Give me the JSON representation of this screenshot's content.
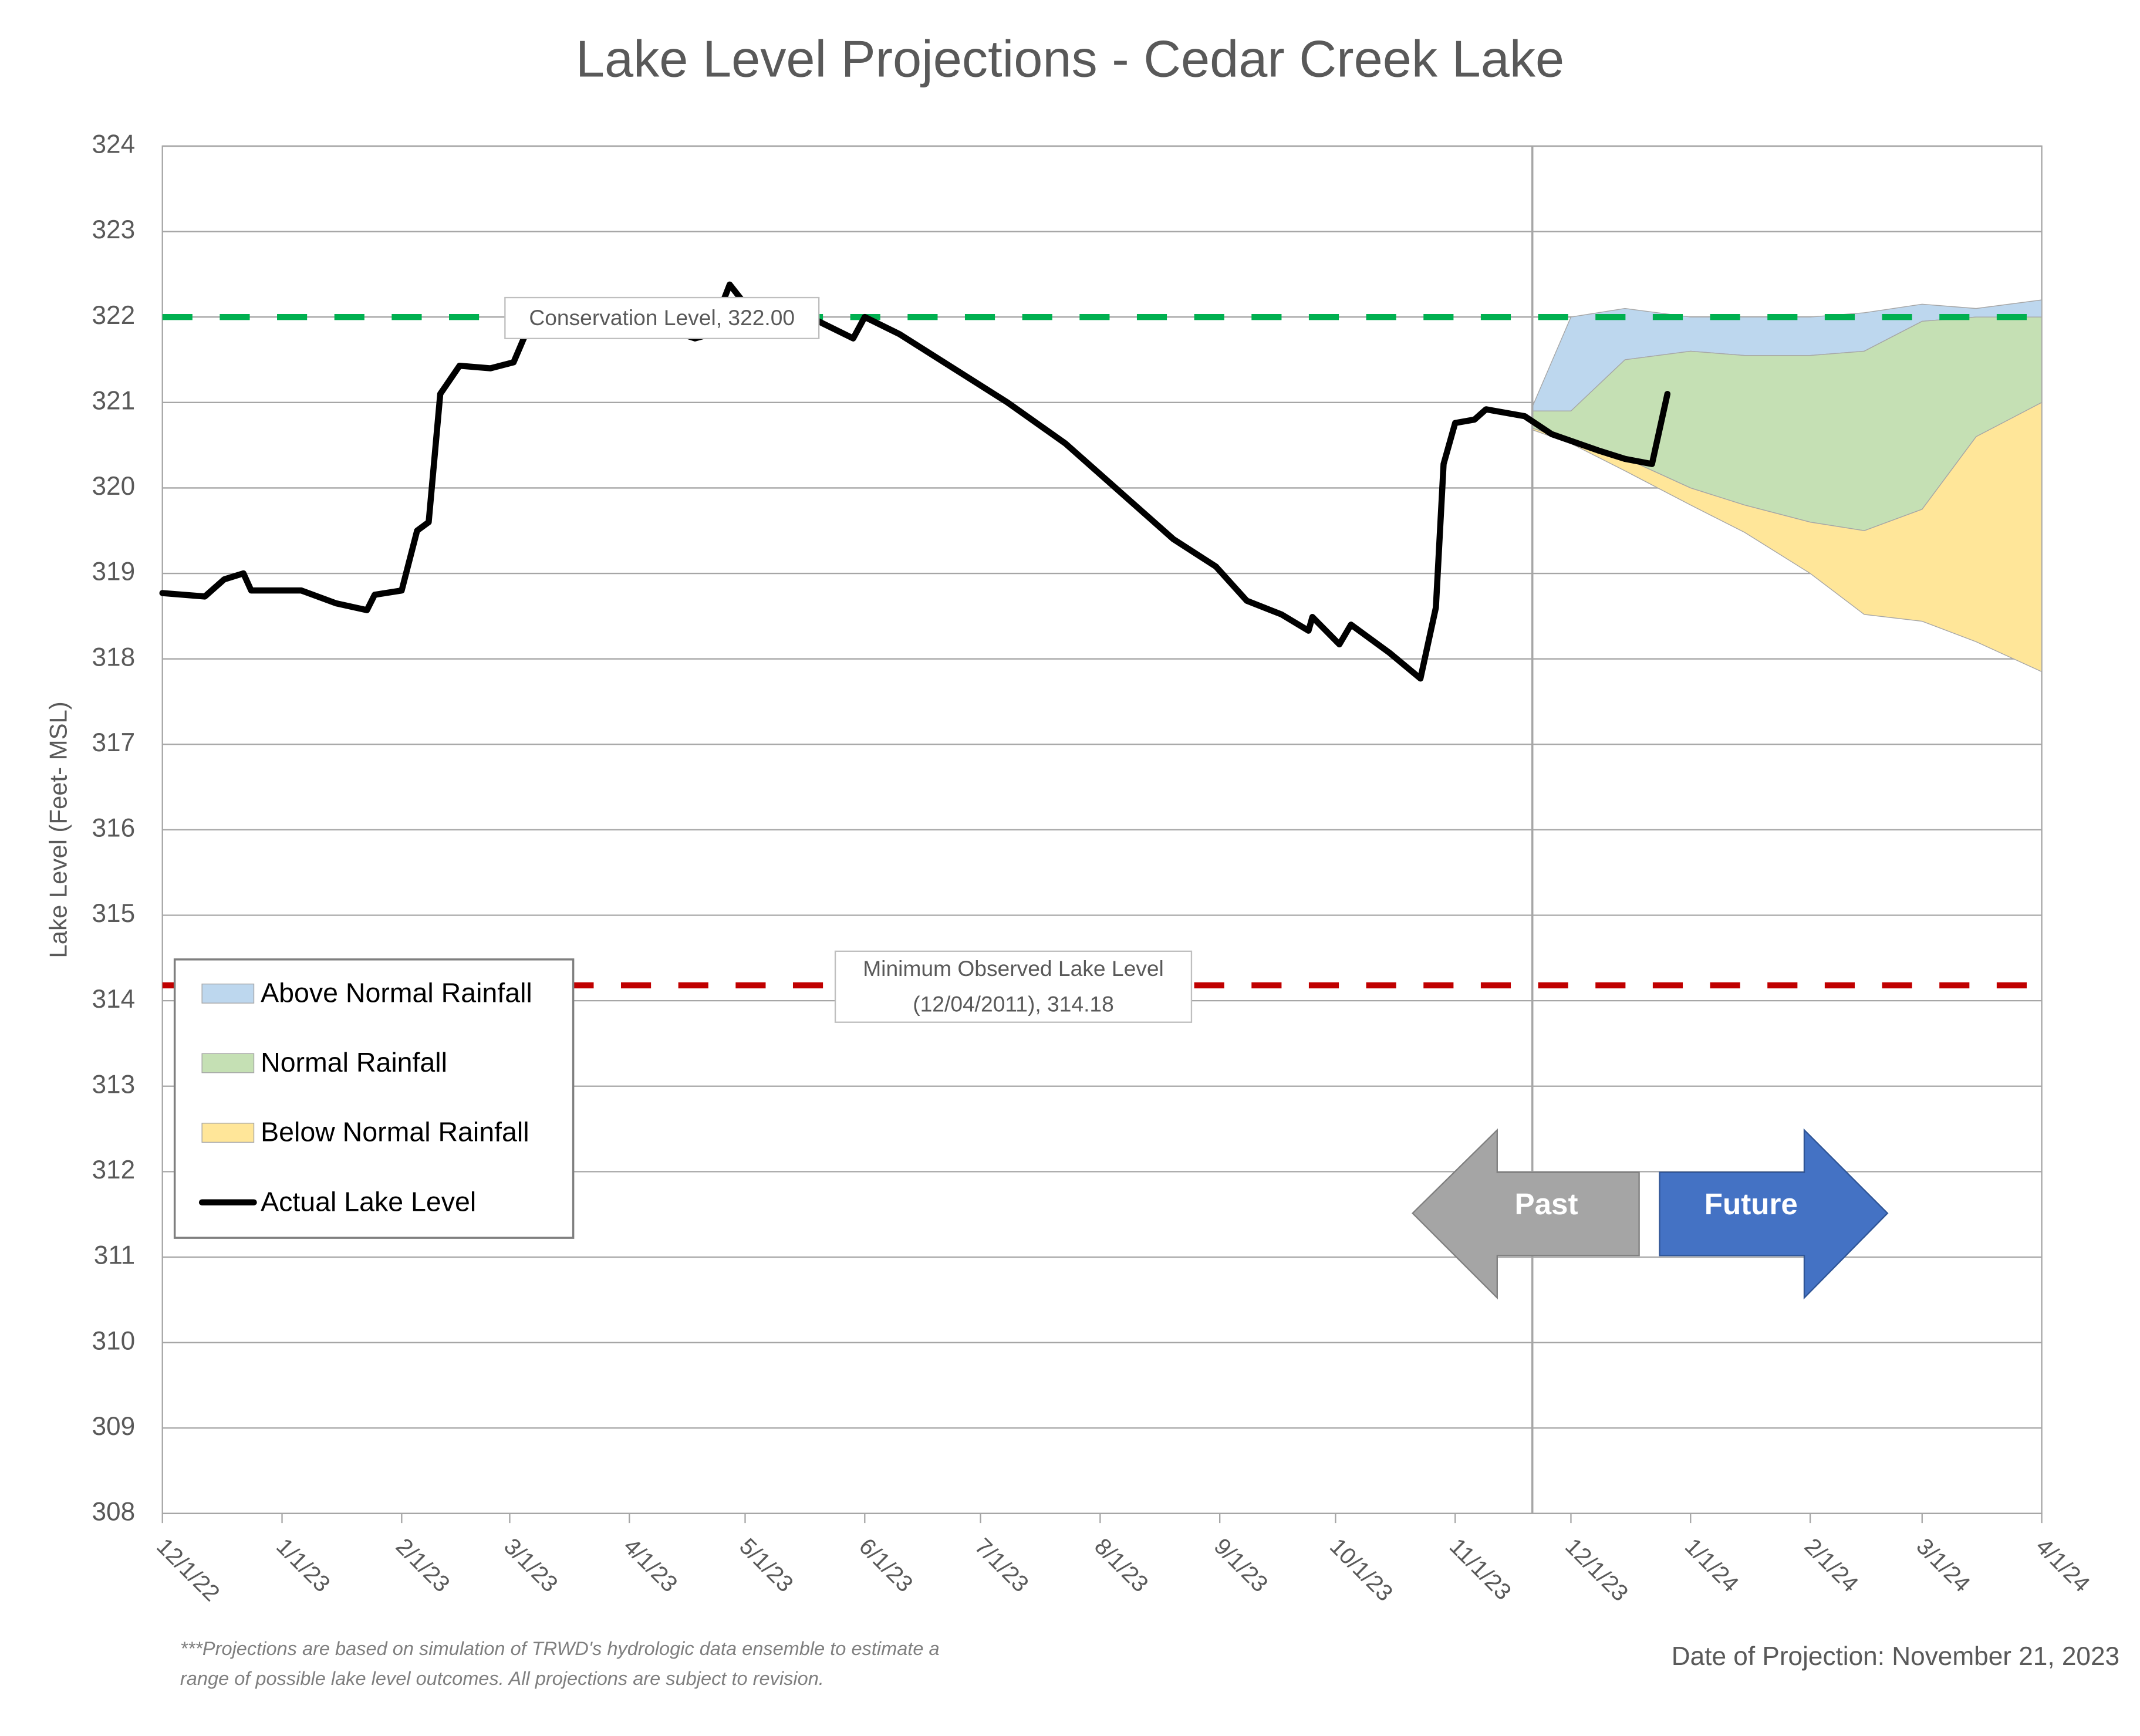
{
  "chart_data": {
    "type": "area",
    "title": "Lake Level Projections - Cedar Creek Lake",
    "y_label": "Lake Level (Feet- MSL)",
    "xlim": [
      "12/1/22",
      "4/1/24"
    ],
    "xticks": [
      "12/1/22",
      "1/1/23",
      "2/1/23",
      "3/1/23",
      "4/1/23",
      "5/1/23",
      "6/1/23",
      "7/1/23",
      "8/1/23",
      "9/1/23",
      "10/1/23",
      "11/1/23",
      "12/1/23",
      "1/1/24",
      "2/1/24",
      "3/1/24",
      "4/1/24"
    ],
    "ylim": [
      308,
      324
    ],
    "yticks": [
      308,
      309,
      310,
      311,
      312,
      313,
      314,
      315,
      316,
      317,
      318,
      319,
      320,
      321,
      322,
      323,
      324
    ],
    "grid": true,
    "projection_date_x": "11/21/23",
    "series": [
      {
        "name": "Above Normal Rainfall",
        "color": "#bdd7ee",
        "x": [
          "11/21/23",
          "12/1/23",
          "12/15/23",
          "1/1/24",
          "1/15/24",
          "2/1/24",
          "2/15/24",
          "3/1/24",
          "3/15/24",
          "4/1/24"
        ],
        "low": [
          320.9,
          320.9,
          321.5,
          321.6,
          321.55,
          321.55,
          321.6,
          321.95,
          322.0,
          322.0
        ],
        "high": [
          320.95,
          322.0,
          322.1,
          322.0,
          322.0,
          322.0,
          322.05,
          322.15,
          322.1,
          322.2
        ]
      },
      {
        "name": "Normal Rainfall",
        "color": "#c5e0b4",
        "x": [
          "11/21/23",
          "12/1/23",
          "12/15/23",
          "1/1/24",
          "1/15/24",
          "2/1/24",
          "2/15/24",
          "3/1/24",
          "3/15/24",
          "4/1/24"
        ],
        "low": [
          320.7,
          320.55,
          320.35,
          320.0,
          319.8,
          319.6,
          319.5,
          319.75,
          320.6,
          321.0
        ],
        "high": [
          320.9,
          320.9,
          321.5,
          321.6,
          321.55,
          321.55,
          321.6,
          321.95,
          322.0,
          322.0
        ]
      },
      {
        "name": "Below Normal Rainfall",
        "color": "#ffe699",
        "x": [
          "11/21/23",
          "12/1/23",
          "12/15/23",
          "1/1/24",
          "1/15/24",
          "2/1/24",
          "2/15/24",
          "3/1/24",
          "3/15/24",
          "4/1/24"
        ],
        "low": [
          320.68,
          320.52,
          320.2,
          319.8,
          319.48,
          319.0,
          318.52,
          318.44,
          318.2,
          317.85
        ],
        "high": [
          320.7,
          320.55,
          320.35,
          320.0,
          319.8,
          319.6,
          319.5,
          319.75,
          320.6,
          321.0
        ]
      },
      {
        "name": "Actual Lake Level",
        "color": "#000000",
        "x": [
          "12/1/22",
          "12/12/22",
          "12/17/22",
          "12/22/22",
          "12/24/22",
          "12/30/22",
          "1/6/23",
          "1/15/23",
          "1/23/23",
          "1/25/23",
          "2/1/23",
          "2/5/23",
          "2/8/23",
          "2/11/23",
          "2/16/23",
          "2/24/23",
          "3/2/23",
          "3/7/23",
          "3/25/23",
          "4/18/23",
          "4/22/23",
          "4/27/23",
          "5/1/23",
          "5/20/23",
          "5/29/23",
          "6/1/23",
          "6/10/23",
          "6/24/23",
          "7/8/23",
          "7/23/23",
          "8/6/23",
          "8/20/23",
          "8/31/23",
          "9/8/23",
          "9/17/23",
          "9/24/23",
          "9/25/23",
          "10/2/23",
          "10/5/23",
          "10/15/23",
          "10/23/23",
          "10/27/23",
          "10/29/23",
          "11/1/23",
          "11/6/23",
          "11/9/23",
          "11/19/23",
          "11/26/23",
          "12/8/23",
          "12/15/23",
          "12/22/23",
          "12/26/23"
        ],
        "values": [
          318.77,
          318.73,
          318.93,
          319.0,
          318.8,
          318.8,
          318.8,
          318.65,
          318.57,
          318.75,
          318.8,
          319.5,
          319.6,
          321.1,
          321.43,
          321.4,
          321.47,
          322.0,
          322.1,
          321.75,
          321.8,
          322.38,
          322.15,
          321.95,
          321.75,
          322.0,
          321.8,
          321.4,
          321.0,
          320.52,
          319.96,
          319.4,
          319.08,
          318.68,
          318.52,
          318.33,
          318.49,
          318.17,
          318.4,
          318.07,
          317.77,
          318.6,
          320.28,
          320.76,
          320.8,
          320.92,
          320.84,
          320.63,
          320.44,
          320.34,
          320.28,
          321.1
        ]
      }
    ],
    "reference_lines": [
      {
        "value": 322.0,
        "color": "#00b050",
        "label": [
          "Conservation Level, 322.00"
        ]
      },
      {
        "value": 314.18,
        "color": "#c00000",
        "label": [
          "Minimum Observed Lake Level",
          "(12/04/2011), 314.18"
        ]
      }
    ],
    "arrows": [
      "Past",
      "Future"
    ],
    "footnote": [
      "***Projections are based on simulation of TRWD's hydrologic data ensemble to estimate a",
      "range of possible lake level outcomes.  All projections are subject to revision."
    ],
    "projection_note": "Date of Projection: November 21, 2023"
  }
}
